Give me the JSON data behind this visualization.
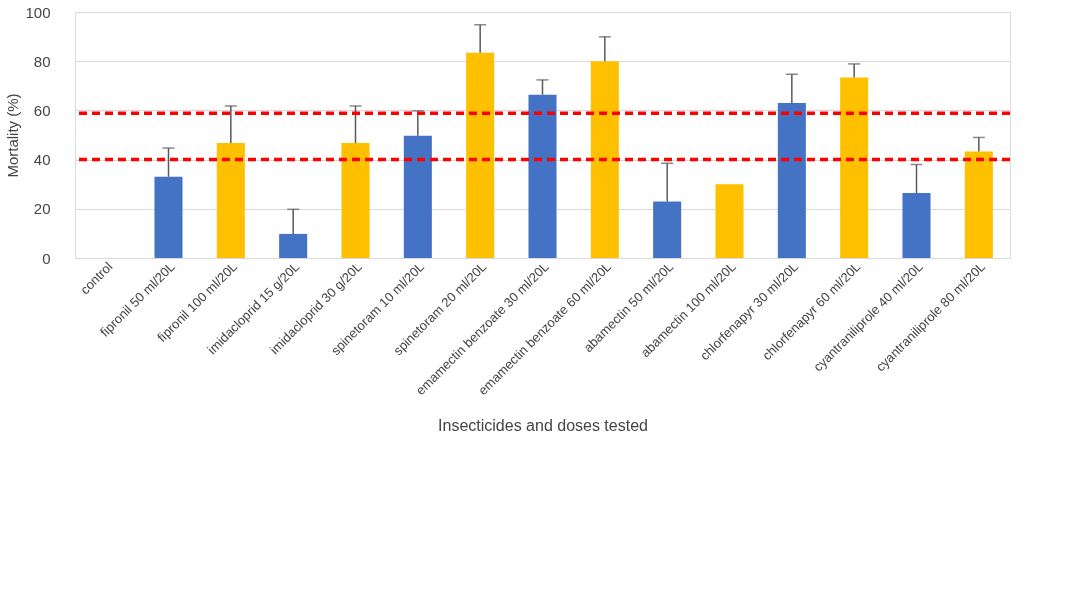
{
  "chart_data": {
    "type": "bar",
    "categories": [
      "control",
      "fipronil 50 ml/20L",
      "fipronil 100 ml/20L",
      "imidacloprid 15 g/20L",
      "imidacloprid 30 g/20L",
      "spinetoram 10 ml/20L",
      "spinetoram 20 ml/20L",
      "emamectin benzoate 30 ml/20L",
      "emamectin benzoate 60 ml/20L",
      "abamectin 50 ml/20L",
      "abamectin 100 ml/20L",
      "chlorfenapyr 30 ml/20L",
      "chlorfenapyr 60 ml/20L",
      "cyantraniliprole 40 ml/20L",
      "cyantraniliprole 80 ml/20L"
    ],
    "values": [
      0,
      33,
      46.7,
      9.8,
      46.7,
      49.7,
      83.4,
      66.4,
      80,
      23,
      30,
      63,
      73.4,
      26.4,
      43.3
    ],
    "errors": [
      null,
      [
        33,
        44.7
      ],
      [
        46.7,
        61.8
      ],
      [
        9.8,
        19.8
      ],
      [
        46.7,
        61.8
      ],
      [
        49.7,
        59.8
      ],
      [
        83.4,
        94.8
      ],
      [
        66.4,
        72.4
      ],
      [
        80,
        89.9
      ],
      [
        23,
        38.5
      ],
      null,
      [
        63,
        74.7
      ],
      [
        73.4,
        78.9
      ],
      [
        26.4,
        38
      ],
      [
        43.3,
        49
      ]
    ],
    "colors": [
      "#4472c4",
      "#4472c4",
      "#ffc000",
      "#4472c4",
      "#ffc000",
      "#4472c4",
      "#ffc000",
      "#4472c4",
      "#ffc000",
      "#4472c4",
      "#ffc000",
      "#4472c4",
      "#ffc000",
      "#4472c4",
      "#ffc000"
    ],
    "xlabel": "Insecticides and doses tested",
    "ylabel": "Mortality (%)",
    "ylim": [
      0,
      100
    ],
    "yticks": [
      0,
      20,
      40,
      60,
      80,
      100
    ],
    "grid": "y",
    "ref_lines": [
      {
        "axis": "y",
        "value": 58.8,
        "color": "#ff0000",
        "line_style": "dashed"
      },
      {
        "axis": "y",
        "value": 40,
        "color": "#ff0000",
        "line_style": "dashed"
      }
    ]
  }
}
